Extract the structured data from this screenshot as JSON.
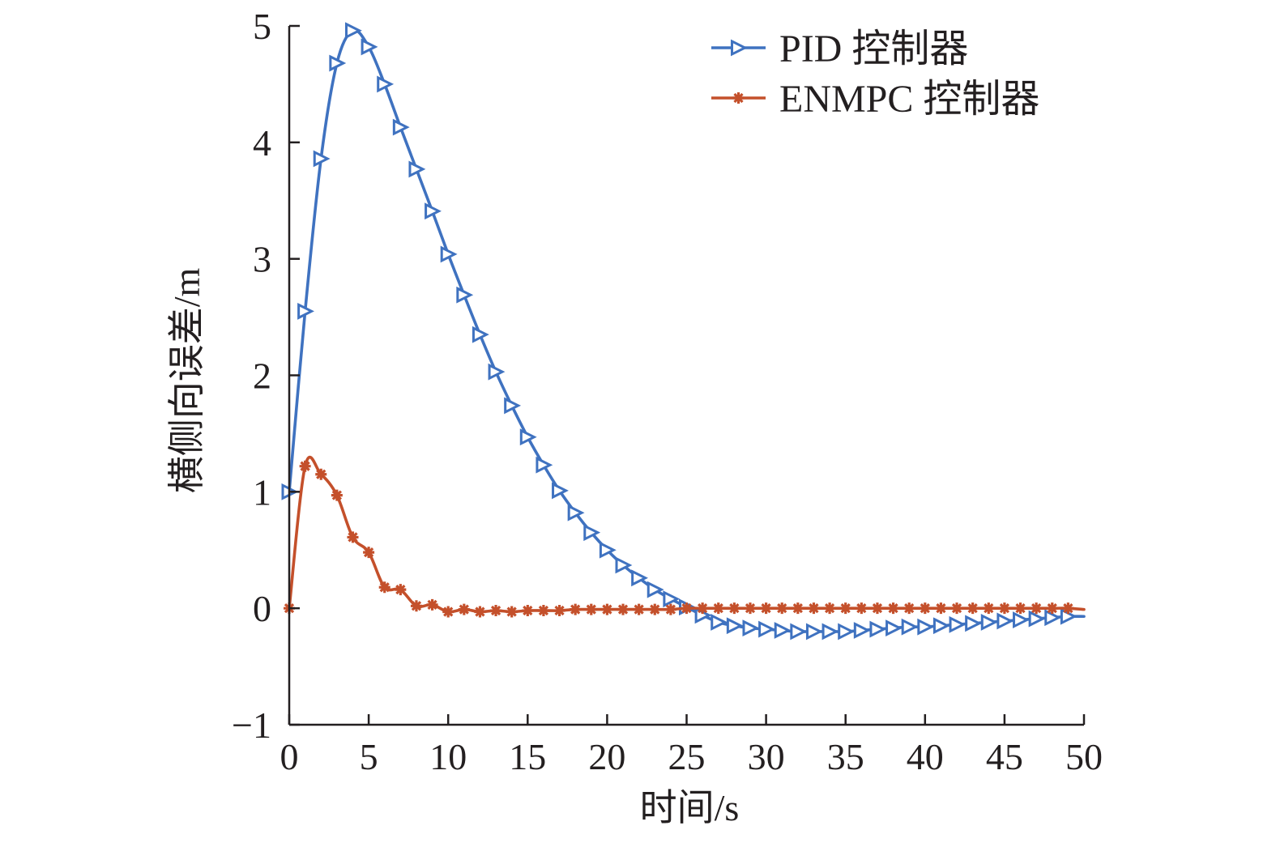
{
  "chart_data": {
    "type": "line",
    "xlabel": "时间/s",
    "ylabel": "横侧向误差/m",
    "xlim": [
      0,
      50
    ],
    "ylim": [
      -1,
      5
    ],
    "x_ticks": [
      0,
      5,
      10,
      15,
      20,
      25,
      30,
      35,
      40,
      45,
      50
    ],
    "y_ticks": [
      -1,
      0,
      1,
      2,
      3,
      4,
      5
    ],
    "y_tick_labels": [
      "−1",
      "0",
      "1",
      "2",
      "3",
      "4",
      "5"
    ],
    "grid": false,
    "legend_position": "top-right",
    "series": [
      {
        "name": "PID 控制器",
        "color": "#3f72c0",
        "marker": "triangle-right",
        "x": [
          0,
          1,
          2,
          3,
          4,
          5,
          6,
          7,
          8,
          9,
          10,
          11,
          12,
          13,
          14,
          15,
          16,
          17,
          18,
          19,
          20,
          21,
          22,
          23,
          24,
          25,
          26,
          27,
          28,
          29,
          30,
          31,
          32,
          33,
          34,
          35,
          36,
          37,
          38,
          39,
          40,
          41,
          42,
          43,
          44,
          45,
          46,
          47,
          48,
          49,
          50
        ],
        "y": [
          1.0,
          2.55,
          3.86,
          4.68,
          4.96,
          4.82,
          4.5,
          4.13,
          3.77,
          3.41,
          3.04,
          2.69,
          2.35,
          2.03,
          1.74,
          1.47,
          1.23,
          1.01,
          0.82,
          0.65,
          0.5,
          0.37,
          0.26,
          0.16,
          0.08,
          0.01,
          -0.06,
          -0.12,
          -0.15,
          -0.17,
          -0.18,
          -0.19,
          -0.2,
          -0.2,
          -0.2,
          -0.2,
          -0.19,
          -0.18,
          -0.17,
          -0.16,
          -0.16,
          -0.15,
          -0.14,
          -0.13,
          -0.12,
          -0.11,
          -0.1,
          -0.09,
          -0.08,
          -0.07,
          -0.07
        ]
      },
      {
        "name": "ENMPC 控制器",
        "color": "#c4502b",
        "marker": "star",
        "x": [
          0,
          1,
          2,
          3,
          4,
          5,
          6,
          7,
          8,
          9,
          10,
          11,
          12,
          13,
          14,
          15,
          16,
          17,
          18,
          19,
          20,
          21,
          22,
          23,
          24,
          25,
          26,
          27,
          28,
          29,
          30,
          31,
          32,
          33,
          34,
          35,
          36,
          37,
          38,
          39,
          40,
          41,
          42,
          43,
          44,
          45,
          46,
          47,
          48,
          49,
          50
        ],
        "y": [
          0.0,
          1.22,
          1.15,
          0.97,
          0.61,
          0.48,
          0.18,
          0.16,
          0.02,
          0.03,
          -0.03,
          -0.01,
          -0.03,
          -0.02,
          -0.03,
          -0.02,
          -0.02,
          -0.02,
          -0.01,
          -0.01,
          -0.01,
          -0.01,
          -0.01,
          -0.01,
          -0.01,
          0.0,
          0.0,
          0.0,
          0.0,
          0.0,
          0.0,
          0.0,
          0.0,
          0.0,
          0.0,
          0.0,
          0.0,
          0.0,
          0.0,
          0.0,
          0.0,
          0.0,
          0.0,
          0.0,
          0.0,
          0.0,
          0.0,
          0.0,
          0.0,
          0.0,
          -0.01
        ]
      }
    ]
  }
}
